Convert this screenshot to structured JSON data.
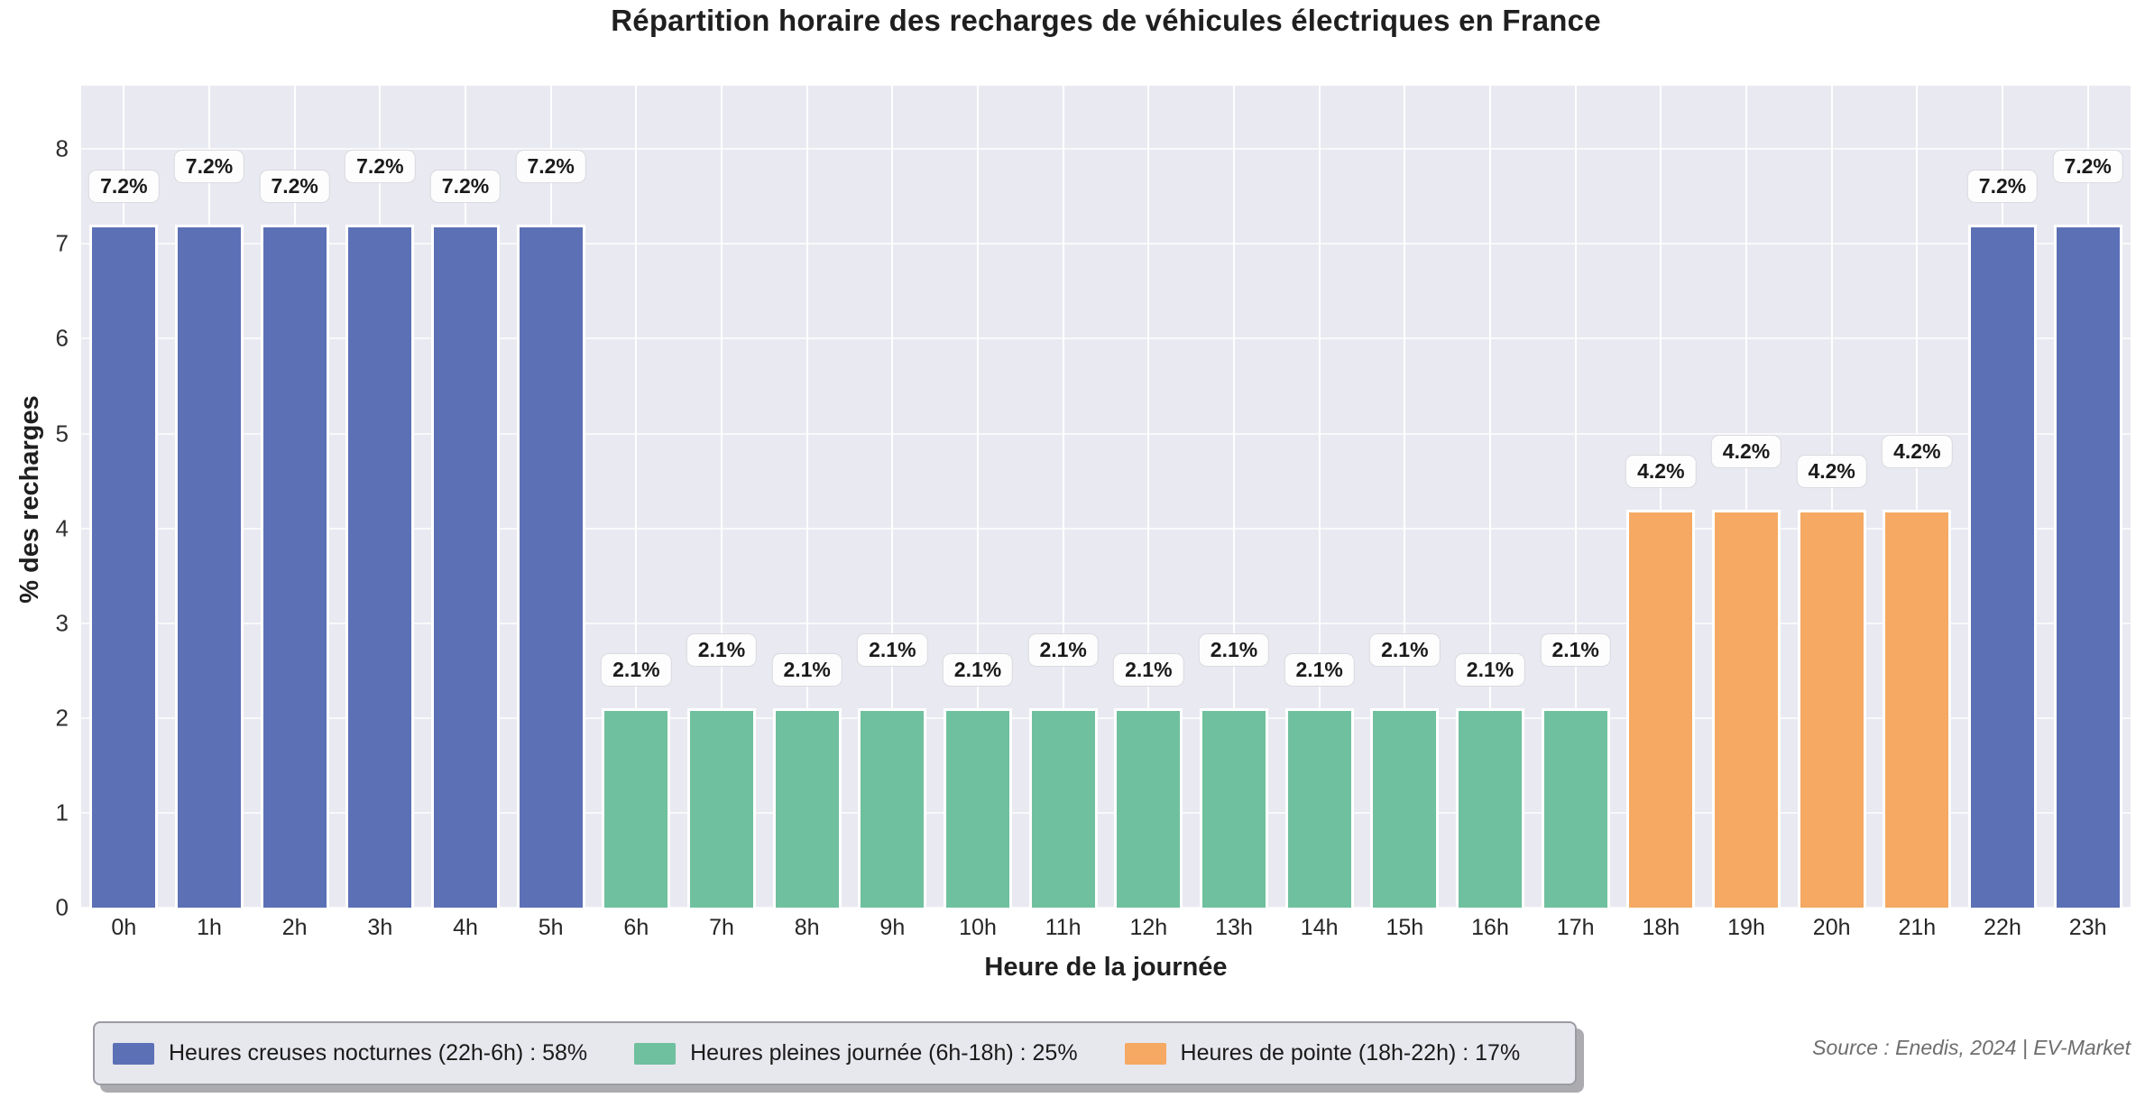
{
  "chart_data": {
    "type": "bar",
    "title": "Répartition horaire des recharges de véhicules électriques en France",
    "xlabel": "Heure de la journée",
    "ylabel": "% des recharges",
    "ylim": [
      0,
      8.67
    ],
    "yticks": [
      "0",
      "1",
      "2",
      "3",
      "4",
      "5",
      "6",
      "7",
      "8"
    ],
    "grid": "on",
    "legend_position": "bottom-left",
    "categories": [
      "0h",
      "1h",
      "2h",
      "3h",
      "4h",
      "5h",
      "6h",
      "7h",
      "8h",
      "9h",
      "10h",
      "11h",
      "12h",
      "13h",
      "14h",
      "15h",
      "16h",
      "17h",
      "18h",
      "19h",
      "20h",
      "21h",
      "22h",
      "23h"
    ],
    "values": [
      7.2,
      7.2,
      7.2,
      7.2,
      7.2,
      7.2,
      2.1,
      2.1,
      2.1,
      2.1,
      2.1,
      2.1,
      2.1,
      2.1,
      2.1,
      2.1,
      2.1,
      2.1,
      4.2,
      4.2,
      4.2,
      4.2,
      7.2,
      7.2
    ],
    "bar_labels": [
      "7.2%",
      "7.2%",
      "7.2%",
      "7.2%",
      "7.2%",
      "7.2%",
      "2.1%",
      "2.1%",
      "2.1%",
      "2.1%",
      "2.1%",
      "2.1%",
      "2.1%",
      "2.1%",
      "2.1%",
      "2.1%",
      "2.1%",
      "2.1%",
      "4.2%",
      "4.2%",
      "4.2%",
      "4.2%",
      "7.2%",
      "7.2%"
    ],
    "groups": [
      "nocturne",
      "nocturne",
      "nocturne",
      "nocturne",
      "nocturne",
      "nocturne",
      "journee",
      "journee",
      "journee",
      "journee",
      "journee",
      "journee",
      "journee",
      "journee",
      "journee",
      "journee",
      "journee",
      "journee",
      "pointe",
      "pointe",
      "pointe",
      "pointe",
      "nocturne",
      "nocturne"
    ],
    "colors": {
      "nocturne": "#5c70b6",
      "journee": "#6fc09e",
      "pointe": "#f5a962",
      "plot_background": "#e9e9f1"
    },
    "legend": [
      {
        "label": "Heures creuses nocturnes (22h-6h) : 58%",
        "group": "nocturne",
        "color": "#5c70b6"
      },
      {
        "label": "Heures pleines journée (6h-18h) : 25%",
        "group": "journee",
        "color": "#6fc09e"
      },
      {
        "label": "Heures de pointe (18h-22h) : 17%",
        "group": "pointe",
        "color": "#f5a962"
      }
    ],
    "source": "Source : Enedis, 2024 | EV-Market"
  }
}
